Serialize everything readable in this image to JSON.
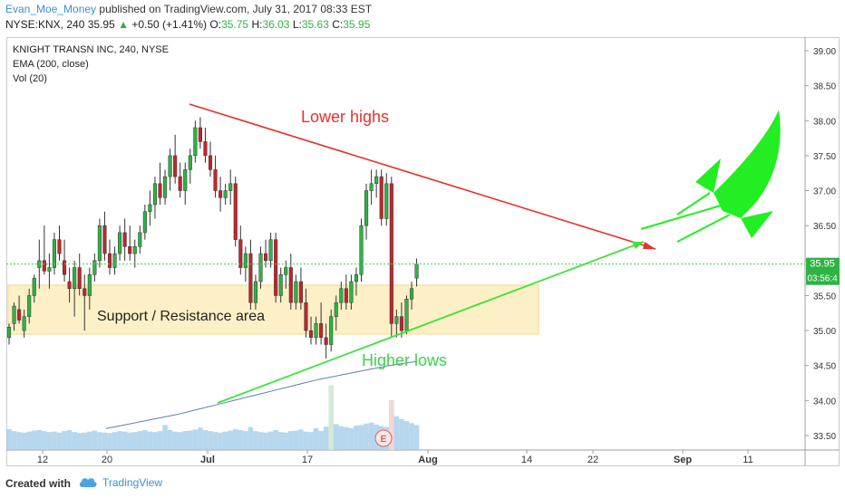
{
  "header": {
    "author": "Evan_Moe_Money",
    "published": "published on TradingView.com, July 31, 2017 08:33 EST",
    "symbol": "NYSE:KNX, 240",
    "last": "35.95",
    "change": "+0.50 (+1.41%)",
    "o_label": "O:",
    "o_value": "35.75",
    "h_label": "H:",
    "h_value": "36.03",
    "l_label": "L:",
    "l_value": "35.63",
    "c_label": "C:",
    "c_value": "35.95"
  },
  "legend": {
    "title": "KNIGHT TRANSN INC, 240, NYSE",
    "ema": "EMA (200, close)",
    "vol": "Vol (20)"
  },
  "annotations": {
    "lower_highs": "Lower highs",
    "higher_lows": "Higher lows",
    "support": "Support / Resistance area",
    "earnings": "E"
  },
  "footer": {
    "created": "Created with",
    "brand": "TradingView"
  },
  "colors": {
    "up": "#2fb344",
    "down": "#c0262c",
    "ema": "#5b80b8",
    "resistance": "#e8302a",
    "support_line": "#3fe23a",
    "rocket": "#22ee22",
    "zone": "#fdf0c6",
    "price_line": "#3fd14a"
  },
  "chart_data": {
    "type": "candlestick",
    "y_axis": {
      "min": 33.5,
      "max": 39.0,
      "ticks": [
        "39.00",
        "38.50",
        "38.00",
        "37.50",
        "37.00",
        "36.50",
        "36.00",
        "35.50",
        "35.00",
        "34.50",
        "34.00",
        "33.50"
      ]
    },
    "x_ticks": [
      "12",
      "20",
      "Jul",
      "17",
      "Aug",
      "14",
      "22",
      "Sep",
      "11"
    ],
    "price_label": "35.95",
    "countdown_label": "03:56:4",
    "support_zone": [
      34.95,
      35.65
    ],
    "candles": [
      [
        34.9,
        35.1,
        34.8,
        35.05
      ],
      [
        35.1,
        35.4,
        35.0,
        35.35
      ],
      [
        35.3,
        35.5,
        35.1,
        35.15
      ],
      [
        35.0,
        35.3,
        34.9,
        35.2
      ],
      [
        35.2,
        35.6,
        35.1,
        35.5
      ],
      [
        35.5,
        35.8,
        35.4,
        35.75
      ],
      [
        35.9,
        36.3,
        35.6,
        36.0
      ],
      [
        36.0,
        36.5,
        35.8,
        35.85
      ],
      [
        35.85,
        36.1,
        35.6,
        35.9
      ],
      [
        35.9,
        36.4,
        35.8,
        36.3
      ],
      [
        36.3,
        36.5,
        36.0,
        36.1
      ],
      [
        36.0,
        36.3,
        35.7,
        35.8
      ],
      [
        35.7,
        35.9,
        35.4,
        35.6
      ],
      [
        35.6,
        36.0,
        35.2,
        35.9
      ],
      [
        35.9,
        36.1,
        35.5,
        35.6
      ],
      [
        35.6,
        35.8,
        35.0,
        35.5
      ],
      [
        35.5,
        35.9,
        35.3,
        35.8
      ],
      [
        35.8,
        36.1,
        35.7,
        36.0
      ],
      [
        36.0,
        36.6,
        35.9,
        36.5
      ],
      [
        36.5,
        36.7,
        36.0,
        36.1
      ],
      [
        36.1,
        36.3,
        35.8,
        35.9
      ],
      [
        35.9,
        36.2,
        35.8,
        36.1
      ],
      [
        36.1,
        36.5,
        36.0,
        36.4
      ],
      [
        36.4,
        36.6,
        36.0,
        36.2
      ],
      [
        36.2,
        36.5,
        36.0,
        36.1
      ],
      [
        36.1,
        36.3,
        35.9,
        36.2
      ],
      [
        36.2,
        36.5,
        36.1,
        36.4
      ],
      [
        36.4,
        36.8,
        36.3,
        36.7
      ],
      [
        36.7,
        37.0,
        36.5,
        36.8
      ],
      [
        36.8,
        37.2,
        36.6,
        37.1
      ],
      [
        37.1,
        37.4,
        36.8,
        36.9
      ],
      [
        36.9,
        37.3,
        36.8,
        37.2
      ],
      [
        37.2,
        37.6,
        37.0,
        37.5
      ],
      [
        37.5,
        37.8,
        37.1,
        37.2
      ],
      [
        37.2,
        37.4,
        36.9,
        37.0
      ],
      [
        37.0,
        37.4,
        36.8,
        37.3
      ],
      [
        37.3,
        37.6,
        37.1,
        37.5
      ],
      [
        37.5,
        38.0,
        37.4,
        37.9
      ],
      [
        37.9,
        38.05,
        37.6,
        37.7
      ],
      [
        37.7,
        37.9,
        37.4,
        37.5
      ],
      [
        37.5,
        37.7,
        37.2,
        37.3
      ],
      [
        37.3,
        37.5,
        36.9,
        37.0
      ],
      [
        37.0,
        37.2,
        36.7,
        36.9
      ],
      [
        36.9,
        37.1,
        36.8,
        37.0
      ],
      [
        37.0,
        37.3,
        36.8,
        37.1
      ],
      [
        37.1,
        37.2,
        36.2,
        36.3
      ],
      [
        36.3,
        36.5,
        35.8,
        35.9
      ],
      [
        35.9,
        36.2,
        35.7,
        36.1
      ],
      [
        36.1,
        36.3,
        35.3,
        35.4
      ],
      [
        35.4,
        35.8,
        35.3,
        35.7
      ],
      [
        35.7,
        36.2,
        35.6,
        36.1
      ],
      [
        36.1,
        36.3,
        35.9,
        36.0
      ],
      [
        36.0,
        36.4,
        35.9,
        36.3
      ],
      [
        36.3,
        36.4,
        35.4,
        35.5
      ],
      [
        35.5,
        35.9,
        35.4,
        35.8
      ],
      [
        35.8,
        36.0,
        35.6,
        35.9
      ],
      [
        35.9,
        36.1,
        35.3,
        35.4
      ],
      [
        35.4,
        35.8,
        35.3,
        35.7
      ],
      [
        35.7,
        35.9,
        35.3,
        35.4
      ],
      [
        35.4,
        35.6,
        34.9,
        35.0
      ],
      [
        35.0,
        35.2,
        34.8,
        34.9
      ],
      [
        34.9,
        35.2,
        34.8,
        35.1
      ],
      [
        35.1,
        35.4,
        34.8,
        34.9
      ],
      [
        34.9,
        35.1,
        34.6,
        34.8
      ],
      [
        34.8,
        35.3,
        34.7,
        35.2
      ],
      [
        35.2,
        35.5,
        35.0,
        35.4
      ],
      [
        35.4,
        35.7,
        35.3,
        35.6
      ],
      [
        35.6,
        35.8,
        35.3,
        35.4
      ],
      [
        35.4,
        35.8,
        35.3,
        35.7
      ],
      [
        35.7,
        35.9,
        35.5,
        35.8
      ],
      [
        35.8,
        36.6,
        35.7,
        36.5
      ],
      [
        36.5,
        37.1,
        36.3,
        37.0
      ],
      [
        37.0,
        37.3,
        36.8,
        37.1
      ],
      [
        37.1,
        37.3,
        36.9,
        37.2
      ],
      [
        37.2,
        37.3,
        36.5,
        36.6
      ],
      [
        36.6,
        37.25,
        36.5,
        37.1
      ],
      [
        37.1,
        37.2,
        34.9,
        35.1
      ],
      [
        35.1,
        35.3,
        34.9,
        35.2
      ],
      [
        35.2,
        35.4,
        34.9,
        35.0
      ],
      [
        35.0,
        35.5,
        34.95,
        35.45
      ],
      [
        35.45,
        35.7,
        35.3,
        35.6
      ],
      [
        35.75,
        36.03,
        35.63,
        35.95
      ]
    ],
    "volumes": [
      0.42,
      0.38,
      0.36,
      0.35,
      0.37,
      0.39,
      0.4,
      0.38,
      0.36,
      0.37,
      0.35,
      0.38,
      0.4,
      0.36,
      0.34,
      0.35,
      0.37,
      0.39,
      0.36,
      0.35,
      0.34,
      0.36,
      0.38,
      0.37,
      0.35,
      0.36,
      0.38,
      0.4,
      0.37,
      0.36,
      0.38,
      0.5,
      0.4,
      0.37,
      0.36,
      0.38,
      0.39,
      0.41,
      0.45,
      0.4,
      0.38,
      0.36,
      0.35,
      0.37,
      0.39,
      0.42,
      0.4,
      0.38,
      0.46,
      0.38,
      0.36,
      0.35,
      0.37,
      0.4,
      0.36,
      0.35,
      0.38,
      0.39,
      0.41,
      0.37,
      0.36,
      0.44,
      0.38,
      0.47,
      1.3,
      0.52,
      0.48,
      0.46,
      0.44,
      0.49,
      0.5,
      0.53,
      0.55,
      0.51,
      0.48,
      0.46,
      1.0,
      0.68,
      0.62,
      0.58,
      0.54,
      0.5
    ],
    "ema_200": [
      33.6,
      33.64,
      33.68,
      33.72,
      33.76,
      33.8,
      33.85,
      33.9,
      33.95,
      34.0,
      34.05,
      34.1,
      34.15,
      34.2,
      34.25,
      34.3,
      34.34,
      34.38,
      34.42,
      34.46,
      34.5,
      34.53,
      34.56
    ]
  }
}
